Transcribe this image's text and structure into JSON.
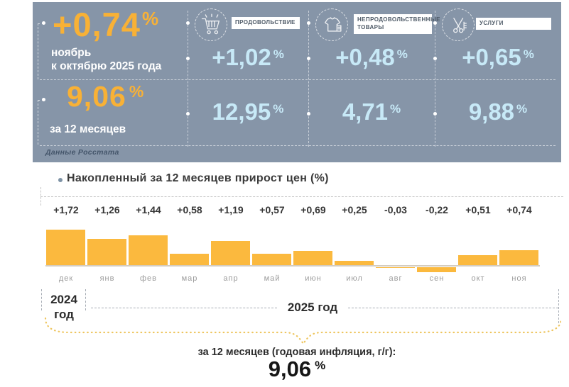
{
  "units": {
    "percent": "%"
  },
  "panel": {
    "monthly": {
      "value": "+0,74",
      "caption_line1": "ноябрь",
      "caption_line2": "к октябрю 2025 года"
    },
    "annual": {
      "value": "9,06",
      "caption": "за 12 месяцев"
    },
    "source": "Данные Росстата",
    "categories": [
      {
        "label": "ПРОДОВОЛЬСТВИЕ",
        "icon": "shopping-cart",
        "monthly": "+1,02",
        "annual": "12,95"
      },
      {
        "label": "НЕПРОДОВОЛЬСТВЕННЫЕ ТОВАРЫ",
        "icon": "clothes",
        "monthly": "+0,48",
        "annual": "4,71"
      },
      {
        "label": "УСЛУГИ",
        "icon": "scissors",
        "monthly": "+0,65",
        "annual": "9,88"
      }
    ],
    "colors": {
      "panel_bg": "#8695a8",
      "accent_orange": "#f8b136",
      "value_blue": "#c7e9f7"
    }
  },
  "chart_data": {
    "type": "bar",
    "title": "Накопленный за 12 месяцев прирост цен (%)",
    "categories": [
      "дек",
      "янв",
      "фев",
      "мар",
      "апр",
      "май",
      "июн",
      "июл",
      "авг",
      "сен",
      "окт",
      "ноя"
    ],
    "values": [
      1.72,
      1.26,
      1.44,
      0.58,
      1.19,
      0.57,
      0.69,
      0.25,
      -0.03,
      -0.22,
      0.51,
      0.74
    ],
    "labels": [
      "+1,72",
      "+1,26",
      "+1,44",
      "+0,58",
      "+1,19",
      "+0,57",
      "+0,69",
      "+0,25",
      "-0,03",
      "-0,22",
      "+0,51",
      "+0,74"
    ],
    "bar_color": "#fbb93e",
    "ylabel": "",
    "xlabel": "",
    "grid": false,
    "legend": false,
    "baseline": 0
  },
  "timeline": {
    "left_year": "2024 год",
    "right_year": "2025 год",
    "brace_color": "#eec55e"
  },
  "footer": {
    "caption": "за 12 месяцев (годовая инфляция, г/г):",
    "value": "9,06"
  }
}
